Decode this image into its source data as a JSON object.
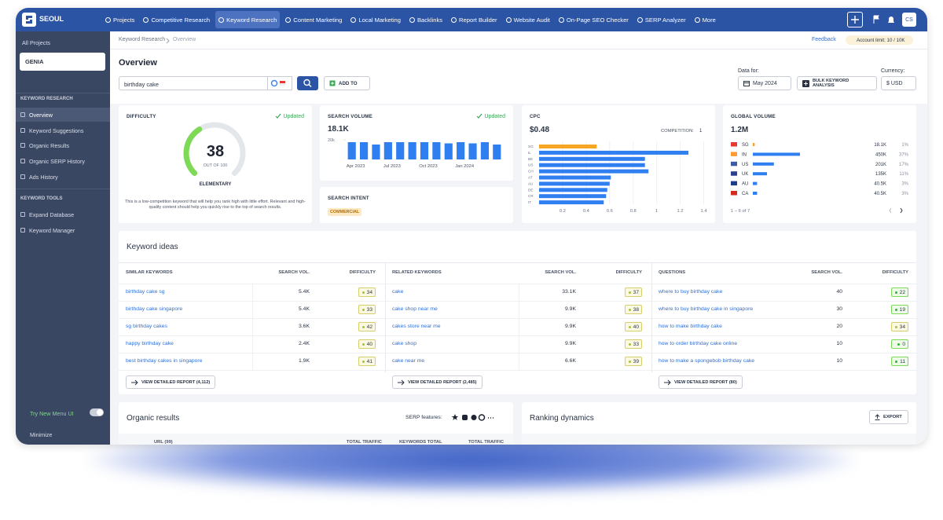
{
  "nav": {
    "brand": "SEOUL",
    "items": [
      "Projects",
      "Competitive Research",
      "Keyword Research",
      "Content Marketing",
      "Local Marketing",
      "Backlinks",
      "Report Builder",
      "Website Audit",
      "On-Page SEO Checker",
      "SERP Analyzer",
      "More"
    ],
    "active": 2,
    "avatar": "CS"
  },
  "sidebar": {
    "all_projects": "All Projects",
    "project": "GENIA",
    "sections": [
      {
        "title": "KEYWORD RESEARCH",
        "items": [
          "Overview",
          "Keyword Suggestions",
          "Organic Results",
          "Organic SERP History",
          "Ads History"
        ]
      },
      {
        "title": "KEYWORD TOOLS",
        "items": [
          "Expand Database",
          "Keyword Manager"
        ]
      }
    ],
    "active_section": 0,
    "active_item": 0,
    "try_new": "Try New Menu UI",
    "minimize": "Minimize"
  },
  "header": {
    "breadcrumb": [
      "Keyword Research",
      "Overview"
    ],
    "feedback": "Feedback",
    "account_limit": "Account limit: 10 / 10K",
    "title": "Overview",
    "query": "birthday cake",
    "add_to": "ADD TO",
    "data_for": "Data for:",
    "month": "May 2024",
    "bulk": "BULK KEYWORD ANALYSIS",
    "currency_label": "Currency:",
    "currency": "$ USD"
  },
  "difficulty": {
    "label": "DIFFICULTY",
    "status": "Updated",
    "value": 38,
    "max": 100,
    "scale_label": "OUT OF 100",
    "level": "ELEMENTARY",
    "color": "#7ed957",
    "description": "This is a low-competition keyword that will help you rank high with little effort. Relevant and high-quality content should help you quickly rise to the top of search results."
  },
  "search_volume": {
    "label": "SEARCH VOLUME",
    "status": "Updated",
    "total": "18.1K",
    "chart_data": {
      "type": "bar",
      "categories": [
        "Apr 2023",
        null,
        null,
        "Jul 2023",
        null,
        null,
        "Oct 2023",
        null,
        null,
        "Jan 2024",
        null,
        null,
        null
      ],
      "values": [
        17600,
        17600,
        15200,
        17600,
        17600,
        17600,
        17600,
        17600,
        16400,
        17600,
        16400,
        17600,
        15200
      ],
      "ylim": [
        0,
        20000
      ],
      "yticks": [
        {
          "value": 20000,
          "label": "20k"
        }
      ],
      "color": "#2f7ff0"
    }
  },
  "intent": {
    "label": "SEARCH INTENT",
    "tag": "COMMERCIAL"
  },
  "cpc": {
    "label": "CPC",
    "value": "$0.48",
    "competition_label": "COMPETITION:",
    "competition": 1,
    "chart_data": {
      "type": "bar",
      "orientation": "horizontal",
      "categories": [
        "SG",
        "IL",
        "BE",
        "US",
        "CH",
        "AT",
        "AU",
        "DE",
        "CR",
        "IT"
      ],
      "values": [
        0.49,
        1.27,
        0.9,
        0.9,
        0.93,
        0.61,
        0.6,
        0.58,
        0.57,
        0.55
      ],
      "colors": [
        "#f5a623",
        "#2f7ff0",
        "#2f7ff0",
        "#2f7ff0",
        "#2f7ff0",
        "#2f7ff0",
        "#2f7ff0",
        "#2f7ff0",
        "#2f7ff0",
        "#2f7ff0"
      ],
      "xlim": [
        0,
        1.45
      ],
      "xticks": [
        0.2,
        0.4,
        0.6,
        0.8,
        1,
        1.2,
        1.4
      ]
    }
  },
  "global_volume": {
    "label": "GLOBAL VOLUME",
    "total": "1.2M",
    "countries": [
      "SG",
      "IN",
      "US",
      "UK",
      "AU",
      "CA"
    ],
    "values": [
      18100,
      450000,
      201000,
      135000,
      40500,
      40500
    ],
    "value_labels": [
      "18.1K",
      "450K",
      "201K",
      "135K",
      "40.5K",
      "40.5K"
    ],
    "shares": [
      "1%",
      "37%",
      "17%",
      "11%",
      "3%",
      "3%"
    ],
    "colors": [
      "#f5a623",
      "#2f7ff0",
      "#2f7ff0",
      "#2f7ff0",
      "#2f7ff0",
      "#2f7ff0"
    ],
    "pagination": "1 – 6 of 7"
  },
  "keyword_ideas": {
    "title": "Keyword ideas",
    "groups": [
      {
        "name": "SIMILAR KEYWORDS",
        "volume_header": "SEARCH VOL.",
        "difficulty_header": "DIFFICULTY",
        "keywords": [
          "birthday cake sg",
          "birthday cake singapore",
          "sg birthday cakes",
          "happy birthday cake",
          "best birthday cakes in singapore"
        ],
        "volumes": [
          "5.4K",
          "5.4K",
          "3.6K",
          "2.4K",
          "1.9K"
        ],
        "difficulties": [
          34,
          33,
          42,
          40,
          41
        ],
        "report": "VIEW DETAILED REPORT (4,112)"
      },
      {
        "name": "RELATED KEYWORDS",
        "volume_header": "SEARCH VOL.",
        "difficulty_header": "DIFFICULTY",
        "keywords": [
          "cake",
          "cake shop near me",
          "cakes store near me",
          "cake shop",
          "cake near me"
        ],
        "volumes": [
          "33.1K",
          "9.9K",
          "9.9K",
          "9.9K",
          "6.6K"
        ],
        "difficulties": [
          37,
          38,
          40,
          33,
          39
        ],
        "report": "VIEW DETAILED REPORT (2,485)"
      },
      {
        "name": "QUESTIONS",
        "volume_header": "SEARCH VOL.",
        "difficulty_header": "DIFFICULTY",
        "keywords": [
          "where to buy birthday cake",
          "where to buy birthday cake in singapore",
          "how to make birthday cake",
          "how to order birthday cake online",
          "how to make a spongebob birthday cake"
        ],
        "volumes": [
          "40",
          "30",
          "20",
          "10",
          "10"
        ],
        "difficulties": [
          22,
          19,
          34,
          0,
          11
        ],
        "report": "VIEW DETAILED REPORT (80)"
      }
    ]
  },
  "organic": {
    "title": "Organic results",
    "serp_label": "SERP features:",
    "columns": [
      "URL (99)",
      "TOTAL TRAFFIC",
      "KEYWORDS TOTAL",
      "TOTAL TRAFFIC"
    ]
  },
  "ranking": {
    "title": "Ranking dynamics",
    "export": "EXPORT"
  }
}
